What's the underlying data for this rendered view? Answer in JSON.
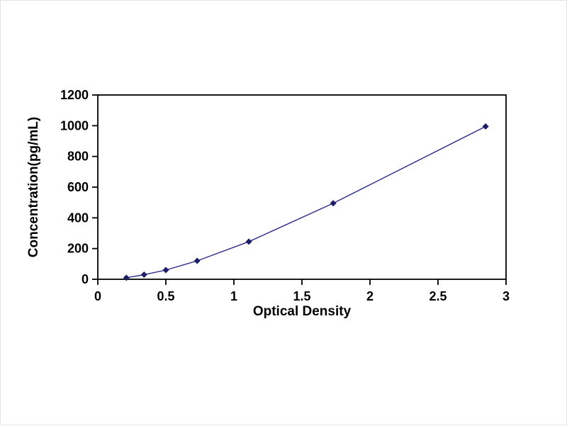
{
  "chart_data": {
    "type": "line",
    "title": "",
    "xlabel": "Optical Density",
    "ylabel": "Concentration(pg/mL)",
    "x": [
      0.21,
      0.34,
      0.5,
      0.73,
      1.11,
      1.73,
      2.85
    ],
    "y": [
      10,
      30,
      60,
      120,
      245,
      495,
      995
    ],
    "xlim": [
      0,
      3
    ],
    "ylim": [
      0,
      1200
    ],
    "xticks": [
      0,
      0.5,
      1,
      1.5,
      2,
      2.5,
      3
    ],
    "xtick_labels": [
      "0",
      "0.5",
      "1",
      "1.5",
      "2",
      "2.5",
      "3"
    ],
    "yticks": [
      0,
      200,
      400,
      600,
      800,
      1000,
      1200
    ],
    "ytick_labels": [
      "0",
      "200",
      "400",
      "600",
      "800",
      "1000",
      "1200"
    ],
    "grid": false,
    "legend": false,
    "marker": "diamond",
    "line_color": "#2c2c8a",
    "marker_color": "#1d1d66",
    "frame_color": "#000000",
    "background": "#ffffff"
  }
}
